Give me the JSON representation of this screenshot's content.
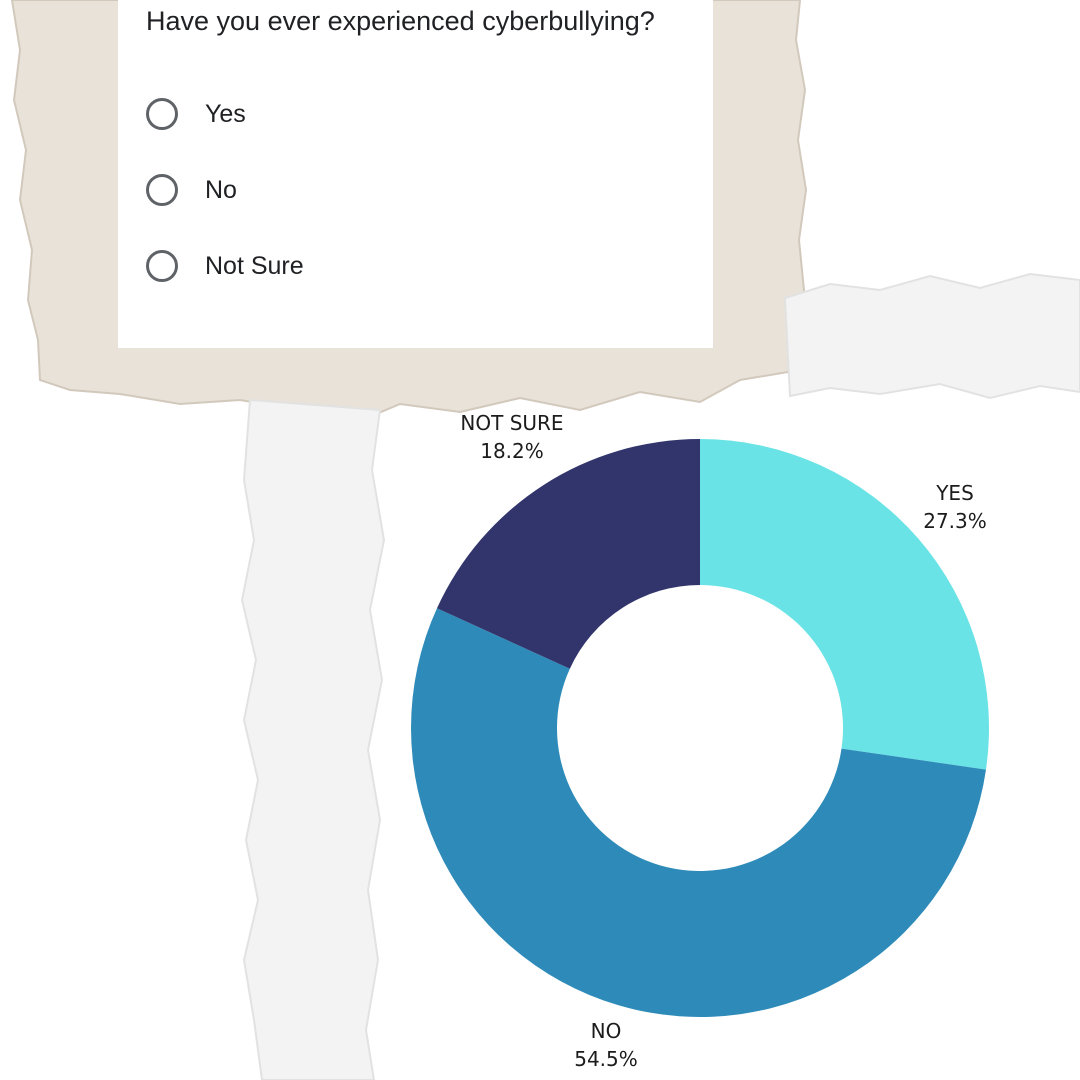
{
  "survey": {
    "question": "Have you ever experienced cyberbullying?",
    "options": [
      "Yes",
      "No",
      "Not Sure"
    ]
  },
  "chart_data": {
    "type": "pie",
    "variant": "donut",
    "title": "",
    "slices": [
      {
        "label": "YES",
        "value": 27.3,
        "value_label": "27.3%",
        "color": "#6ae3e6"
      },
      {
        "label": "NO",
        "value": 54.5,
        "value_label": "54.5%",
        "color": "#2e8bb9"
      },
      {
        "label": "NOT SURE",
        "value": 18.2,
        "value_label": "18.2%",
        "color": "#31356c"
      }
    ],
    "start": "top, clockwise",
    "legend": "none"
  },
  "colors": {
    "paper_brown": "#e8e2d9",
    "paper_white": "#f3f3f3",
    "radio_border": "#5f6368",
    "text": "#202124"
  }
}
